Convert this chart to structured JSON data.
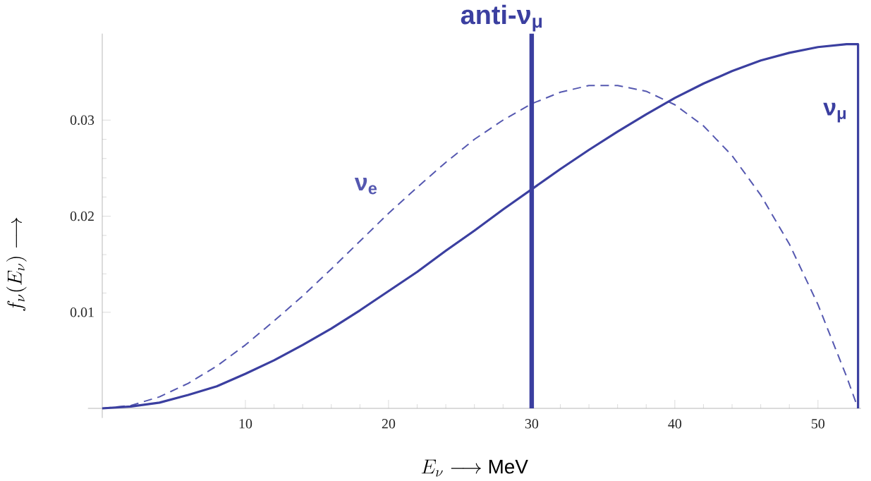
{
  "chart_data": {
    "type": "line",
    "xlabel": "E_\\nu \\longrightarrow \\mathrm{MeV}",
    "ylabel": "f_\\nu(E_\\nu) \\longrightarrow",
    "x": [
      0,
      2,
      4,
      6,
      8,
      10,
      12,
      14,
      16,
      18,
      20,
      22,
      24,
      26,
      28,
      30,
      32,
      34,
      36,
      38,
      40,
      42,
      44,
      46,
      48,
      50,
      52,
      52.8
    ],
    "series": [
      {
        "name": "ν$_{e}$",
        "color": "#5558b0",
        "line_style": "dashed",
        "values": [
          0,
          0.0003,
          0.0012,
          0.0026,
          0.0044,
          0.0066,
          0.0091,
          0.0117,
          0.0145,
          0.0174,
          0.0203,
          0.023,
          0.0256,
          0.028,
          0.03,
          0.0317,
          0.0329,
          0.0336,
          0.0336,
          0.033,
          0.0316,
          0.0294,
          0.0263,
          0.0222,
          0.0171,
          0.0108,
          0.0033,
          0
        ]
      },
      {
        "name": "ν$_{μ}$",
        "color": "#3b3fa0",
        "line_style": "solid",
        "x": [
          0,
          2,
          4,
          6,
          8,
          10,
          12,
          14,
          16,
          18,
          20,
          22,
          24,
          26,
          28,
          30,
          32,
          34,
          36,
          38,
          40,
          42,
          44,
          46,
          48,
          50,
          52,
          52.8,
          52.8
        ],
        "values": [
          0,
          0.0002,
          0.0006,
          0.0014,
          0.0023,
          0.0036,
          0.005,
          0.0066,
          0.0083,
          0.0102,
          0.0122,
          0.0142,
          0.0164,
          0.0185,
          0.0207,
          0.0228,
          0.0249,
          0.0269,
          0.0288,
          0.0306,
          0.0323,
          0.0338,
          0.0351,
          0.0362,
          0.037,
          0.0376,
          0.0379,
          0.0379,
          0
        ]
      }
    ],
    "ref_lines": [
      {
        "axis": "x",
        "value": 30,
        "label": "anti-ν$_{μ}$",
        "color": "#3b3fa0",
        "line_style": "solid"
      }
    ],
    "xlim": [
      -1,
      53
    ],
    "ylim": [
      -0.001,
      0.039
    ],
    "xticks": [
      10,
      20,
      30,
      40,
      50
    ],
    "yticks": [
      0.01,
      0.02,
      0.03
    ],
    "grid": false,
    "marker": "none"
  }
}
